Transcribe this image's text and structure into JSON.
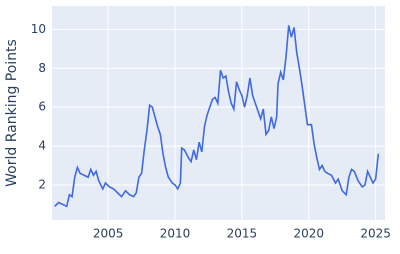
{
  "chart_data": {
    "type": "line",
    "y_label": "World Ranking Points",
    "x": [
      2001.0,
      2001.3,
      2001.6,
      2001.9,
      2002.1,
      2002.3,
      2002.5,
      2002.7,
      2002.9,
      2003.2,
      2003.5,
      2003.7,
      2003.9,
      2004.1,
      2004.3,
      2004.6,
      2004.8,
      2005.1,
      2005.4,
      2005.7,
      2006.0,
      2006.3,
      2006.6,
      2006.9,
      2007.1,
      2007.3,
      2007.5,
      2007.7,
      2007.9,
      2008.1,
      2008.3,
      2008.5,
      2008.7,
      2008.9,
      2009.1,
      2009.3,
      2009.5,
      2009.8,
      2010.0,
      2010.2,
      2010.4,
      2010.5,
      2010.7,
      2011.0,
      2011.2,
      2011.4,
      2011.6,
      2011.8,
      2012.0,
      2012.2,
      2012.4,
      2012.6,
      2012.8,
      2013.0,
      2013.2,
      2013.4,
      2013.6,
      2013.8,
      2014.0,
      2014.2,
      2014.4,
      2014.6,
      2014.8,
      2015.0,
      2015.2,
      2015.4,
      2015.6,
      2015.8,
      2016.0,
      2016.2,
      2016.4,
      2016.6,
      2016.8,
      2017.0,
      2017.2,
      2017.4,
      2017.6,
      2017.7,
      2017.9,
      2018.1,
      2018.3,
      2018.5,
      2018.7,
      2018.9,
      2019.1,
      2019.3,
      2019.5,
      2019.7,
      2019.9,
      2020.2,
      2020.4,
      2020.6,
      2020.8,
      2021.0,
      2021.2,
      2021.4,
      2021.7,
      2022.0,
      2022.2,
      2022.5,
      2022.8,
      2023.0,
      2023.2,
      2023.4,
      2023.7,
      2024.0,
      2024.2,
      2024.4,
      2024.6,
      2024.8,
      2025.0,
      2025.2
    ],
    "series": [
      {
        "color": "#4169e1",
        "values": [
          0.9,
          1.1,
          1.0,
          0.9,
          1.5,
          1.4,
          2.4,
          2.9,
          2.6,
          2.5,
          2.4,
          2.8,
          2.5,
          2.7,
          2.2,
          1.8,
          2.1,
          1.9,
          1.8,
          1.6,
          1.4,
          1.7,
          1.5,
          1.4,
          1.6,
          2.4,
          2.6,
          3.8,
          4.8,
          6.1,
          6.0,
          5.5,
          5.0,
          4.6,
          3.6,
          2.9,
          2.4,
          2.1,
          2.0,
          1.8,
          2.1,
          3.9,
          3.8,
          3.4,
          3.2,
          3.8,
          3.3,
          4.2,
          3.7,
          5.0,
          5.6,
          6.0,
          6.4,
          6.5,
          6.2,
          7.9,
          7.5,
          7.6,
          6.8,
          6.2,
          5.9,
          7.3,
          6.9,
          6.6,
          6.0,
          6.6,
          7.5,
          6.6,
          6.2,
          5.8,
          5.4,
          5.9,
          4.6,
          4.8,
          5.5,
          4.9,
          5.5,
          7.2,
          7.8,
          7.4,
          8.6,
          10.2,
          9.6,
          10.1,
          8.8,
          8.0,
          7.1,
          6.1,
          5.1,
          5.1,
          4.1,
          3.4,
          2.8,
          3.0,
          2.7,
          2.6,
          2.5,
          2.1,
          2.3,
          1.7,
          1.5,
          2.4,
          2.8,
          2.7,
          2.2,
          1.9,
          2.0,
          2.7,
          2.4,
          2.1,
          2.3,
          3.6
        ]
      }
    ],
    "xlim": [
      2000.8,
      2025.7
    ],
    "xticks": [
      2005,
      2010,
      2015,
      2020,
      2025
    ],
    "ylim": [
      0.2,
      11.2
    ],
    "yticks": [
      2,
      4,
      6,
      8,
      10
    ],
    "grid": true
  }
}
